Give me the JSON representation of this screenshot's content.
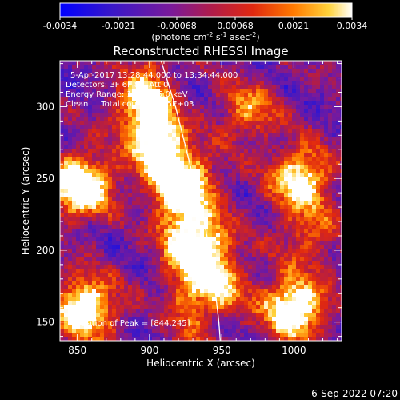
{
  "colorbar": {
    "ticks": [
      "-0.0034",
      "-0.0021",
      "-0.00068",
      "0.00068",
      "0.0021",
      "0.0034"
    ],
    "units_prefix": "(photons cm",
    "units_sup1": "-2",
    "units_mid": " s",
    "units_sup2": "-1",
    "units_mid2": " asec",
    "units_sup3": "-2",
    "units_suffix": ")"
  },
  "annotations": {
    "time_range": "5-Apr-2017 13:28:44.000 to 13:34:44.000",
    "detectors": "Detectors: 3F 6F 8F, Att 0",
    "energy": "Energy Range: 12.0 - 25.0 keV",
    "clean": "Clean     Total counts: 1.85E+03",
    "peak": "Position of Peak = [844,245]"
  },
  "footer_date": "6-Sep-2022 07:20",
  "colors": {
    "background": "#000000",
    "limb_line": "#ffffff"
  },
  "chart_data": {
    "type": "heatmap",
    "title": "Reconstructed RHESSI Image",
    "xlabel": "Heliocentric X (arcsec)",
    "ylabel": "Heliocentric Y (arcsec)",
    "xlim": [
      838,
      1033
    ],
    "ylim": [
      137,
      332
    ],
    "xticks": [
      850,
      900,
      950,
      1000
    ],
    "xtick_labels": [
      "850",
      "900",
      "950",
      "1000"
    ],
    "yticks": [
      150,
      200,
      250,
      300
    ],
    "ytick_labels": [
      "150",
      "200",
      "250",
      "300"
    ],
    "colorbar_range": [
      -0.0034,
      0.0034
    ],
    "colormap": "blue-purple-red-yellow-white",
    "bright_sources": [
      {
        "x": 852,
        "y": 245,
        "level": 0.95
      },
      {
        "x": 855,
        "y": 160,
        "level": 0.85
      },
      {
        "x": 1000,
        "y": 160,
        "level": 0.9
      },
      {
        "x": 1005,
        "y": 250,
        "level": 0.75
      },
      {
        "x": 925,
        "y": 245,
        "level": 0.8
      },
      {
        "x": 935,
        "y": 205,
        "level": 0.75
      },
      {
        "x": 945,
        "y": 175,
        "level": 0.6
      },
      {
        "x": 895,
        "y": 300,
        "level": 0.6
      },
      {
        "x": 905,
        "y": 270,
        "level": 0.55
      },
      {
        "x": 968,
        "y": 297,
        "level": 0.45
      },
      {
        "x": 1010,
        "y": 210,
        "level": 0.35
      }
    ],
    "peak_position": [
      844,
      245
    ],
    "limb_curve": [
      {
        "x": 908,
        "y": 332
      },
      {
        "x": 918,
        "y": 300
      },
      {
        "x": 928,
        "y": 260
      },
      {
        "x": 938,
        "y": 220
      },
      {
        "x": 944,
        "y": 185
      },
      {
        "x": 948,
        "y": 150
      },
      {
        "x": 949,
        "y": 137
      }
    ]
  }
}
